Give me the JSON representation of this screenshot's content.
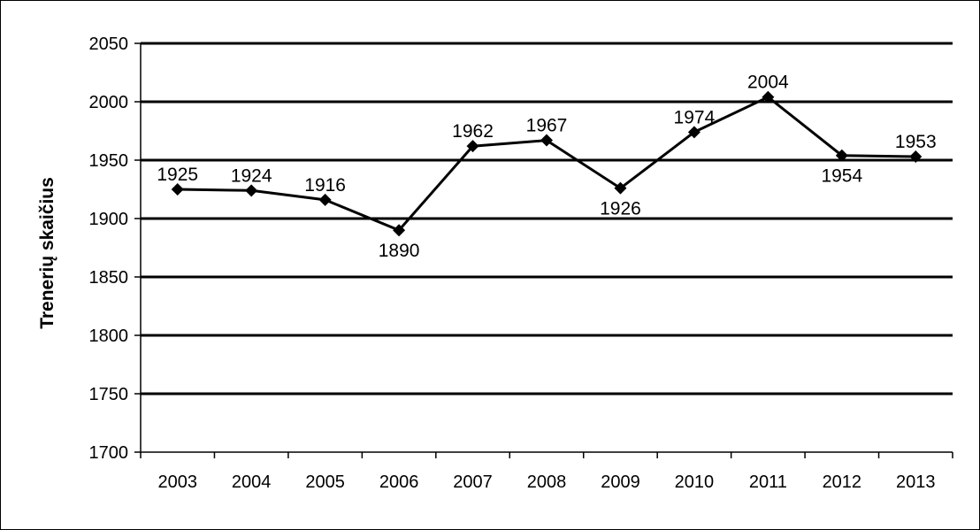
{
  "chart_data": {
    "type": "line",
    "title": "",
    "xlabel": "",
    "ylabel": "Trenerių skaičius",
    "categories": [
      "2003",
      "2004",
      "2005",
      "2006",
      "2007",
      "2008",
      "2009",
      "2010",
      "2011",
      "2012",
      "2013"
    ],
    "series": [
      {
        "values": [
          1925,
          1924,
          1916,
          1890,
          1962,
          1967,
          1926,
          1974,
          2004,
          1954,
          1953
        ],
        "color": "#000000",
        "marker": "diamond"
      }
    ],
    "data_labels": [
      "1925",
      "1924",
      "1916",
      "1890",
      "1962",
      "1967",
      "1926",
      "1974",
      "2004",
      "1954",
      "1953"
    ],
    "label_positions": [
      "above",
      "above",
      "above",
      "below",
      "above",
      "above",
      "below",
      "above",
      "above",
      "below",
      "above"
    ],
    "ylim": [
      1700,
      2050
    ],
    "yticks": [
      1700,
      1750,
      1800,
      1850,
      1900,
      1950,
      2000,
      2050
    ],
    "grid": true,
    "legend": "none"
  }
}
